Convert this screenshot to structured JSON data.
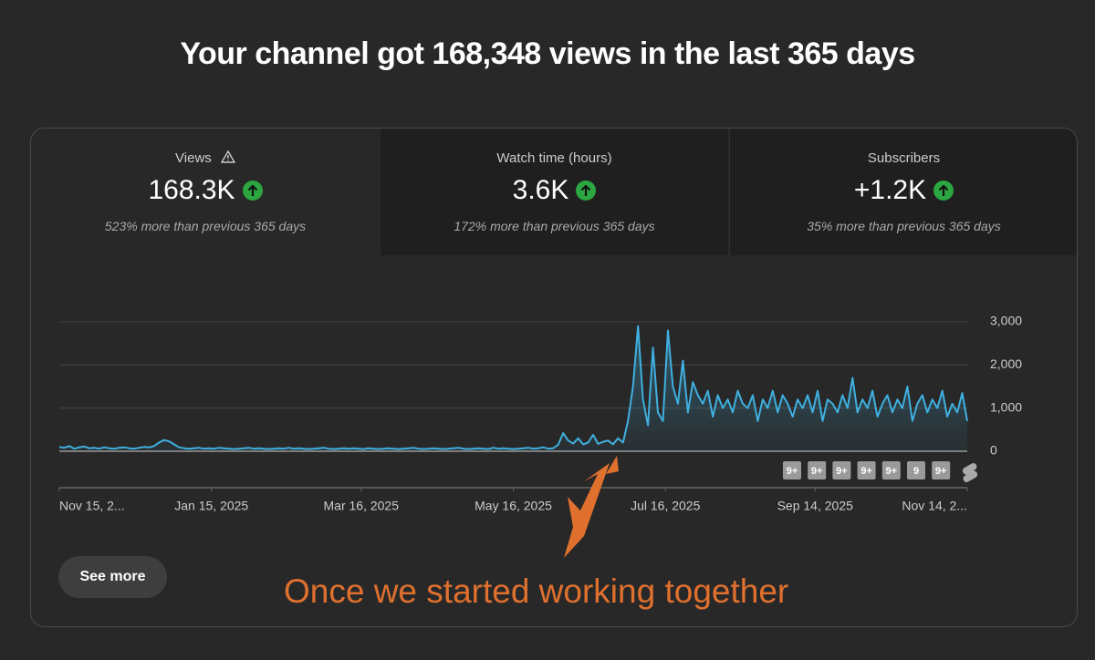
{
  "header": {
    "title": "Your channel got 168,348 views in the last 365 days"
  },
  "metrics": [
    {
      "label": "Views",
      "value": "168.3K",
      "change": "523% more than previous 365 days"
    },
    {
      "label": "Watch time (hours)",
      "value": "3.6K",
      "change": "172% more than previous 365 days"
    },
    {
      "label": "Subscribers",
      "value": "+1.2K",
      "change": "35% more than previous 365 days"
    }
  ],
  "chart_data": {
    "type": "line",
    "color": "#3fb0e0",
    "values": [
      100,
      80,
      120,
      60,
      90,
      110,
      70,
      80,
      60,
      90,
      70,
      60,
      80,
      90,
      70,
      60,
      80,
      100,
      90,
      120,
      200,
      260,
      230,
      160,
      90,
      70,
      60,
      70,
      80,
      60,
      70,
      60,
      80,
      70,
      60,
      50,
      60,
      70,
      80,
      60,
      70,
      60,
      50,
      60,
      70,
      60,
      80,
      60,
      70,
      60,
      50,
      60,
      70,
      80,
      60,
      50,
      60,
      70,
      60,
      70,
      60,
      50,
      70,
      60,
      50,
      60,
      70,
      60,
      50,
      60,
      70,
      80,
      60,
      50,
      60,
      70,
      60,
      50,
      60,
      70,
      80,
      60,
      50,
      60,
      70,
      60,
      50,
      80,
      60,
      70,
      60,
      50,
      60,
      70,
      80,
      60,
      70,
      90,
      60,
      70,
      150,
      420,
      250,
      180,
      300,
      160,
      200,
      380,
      170,
      220,
      250,
      160,
      300,
      200,
      700,
      1500,
      2900,
      1200,
      600,
      2400,
      900,
      700,
      2800,
      1500,
      1100,
      2100,
      900,
      1600,
      1300,
      1100,
      1400,
      800,
      1300,
      1000,
      1200,
      900,
      1400,
      1100,
      1000,
      1300,
      700,
      1200,
      1000,
      1400,
      900,
      1300,
      1100,
      800,
      1200,
      1000,
      1300,
      900,
      1400,
      700,
      1200,
      1100,
      900,
      1300,
      1000,
      1700,
      900,
      1200,
      1000,
      1400,
      800,
      1100,
      1300,
      900,
      1200,
      1000,
      1500,
      700,
      1100,
      1300,
      900,
      1200,
      1000,
      1400,
      800,
      1100,
      900,
      1350,
      700
    ],
    "xlim": [
      0,
      182
    ],
    "xticks": [
      {
        "value": 0,
        "label": "Nov 15, 2..."
      },
      {
        "value": 30.5,
        "label": "Jan 15, 2025"
      },
      {
        "value": 60.5,
        "label": "Mar 16, 2025"
      },
      {
        "value": 91,
        "label": "May 16, 2025"
      },
      {
        "value": 121.5,
        "label": "Jul 16, 2025"
      },
      {
        "value": 151.5,
        "label": "Sep 14, 2025"
      },
      {
        "value": 182,
        "label": "Nov 14, 2..."
      }
    ],
    "ylim": [
      0,
      3000
    ],
    "yticks": [
      0,
      {
        "value": 1000,
        "label": "1,000"
      },
      {
        "value": 2000,
        "label": "2,000"
      },
      {
        "value": 3000,
        "label": "3,000"
      }
    ],
    "grid": true,
    "badges": [
      "9+",
      "9+",
      "9+",
      "9+",
      "9+",
      "9",
      "9+"
    ],
    "annotation": "Once we started working together"
  },
  "button": "See more"
}
